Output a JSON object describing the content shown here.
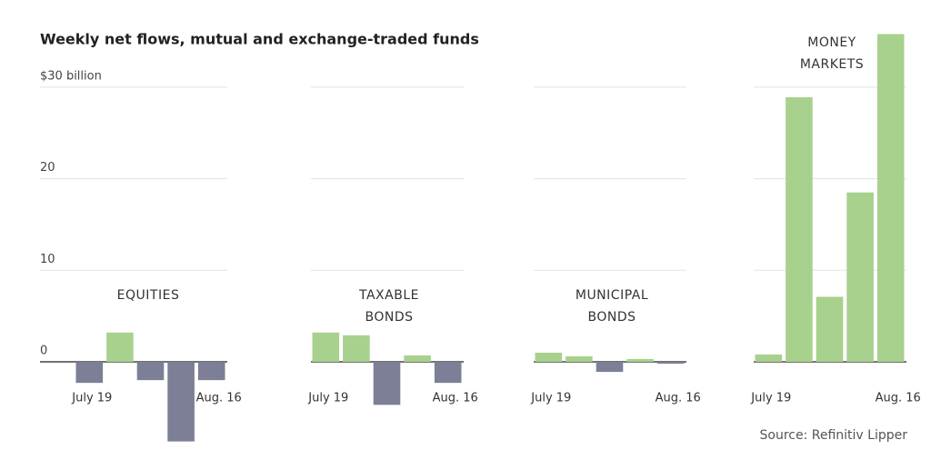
{
  "title": "Weekly net flows, mutual and exchange-traded funds",
  "source": "Source: Refinitiv Lipper",
  "chart_data": [
    {
      "type": "bar",
      "title": [
        "EQUITIES"
      ],
      "categories": [
        "July 19",
        null,
        null,
        null,
        "Aug. 16"
      ],
      "values": [
        -2.3,
        3.2,
        -2.0,
        -8.7,
        -2.0
      ],
      "positive_color": "#a8d18d",
      "negative_color": "#7c7f96",
      "ylim": [
        -10,
        36
      ],
      "yticks": [
        0,
        10,
        20,
        {
          "value": 30,
          "label": "$30 billion"
        }
      ],
      "grid": true
    },
    {
      "type": "bar",
      "title": [
        "TAXABLE",
        "BONDS"
      ],
      "categories": [
        "July 19",
        null,
        null,
        null,
        "Aug. 16"
      ],
      "values": [
        3.2,
        2.9,
        -4.7,
        0.7,
        -2.3
      ],
      "positive_color": "#a8d18d",
      "negative_color": "#7c7f96"
    },
    {
      "type": "bar",
      "title": [
        "MUNICIPAL",
        "BONDS"
      ],
      "categories": [
        "July 19",
        null,
        null,
        null,
        "Aug. 16"
      ],
      "values": [
        1.0,
        0.6,
        -1.1,
        0.3,
        -0.2
      ],
      "positive_color": "#a8d18d",
      "negative_color": "#7c7f96"
    },
    {
      "type": "bar",
      "title": [
        "MONEY",
        "MARKETS"
      ],
      "categories": [
        "July 19",
        null,
        null,
        null,
        "Aug. 16"
      ],
      "values": [
        0.8,
        28.9,
        7.1,
        18.5,
        35.8
      ],
      "positive_color": "#a8d18d",
      "negative_color": "#7c7f96"
    }
  ]
}
